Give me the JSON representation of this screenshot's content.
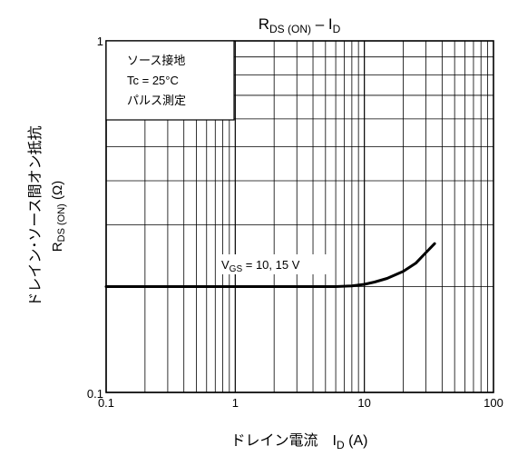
{
  "chart_data": {
    "type": "line",
    "title_main": "R",
    "title_sub": "DS (ON)",
    "title_rest": " – I",
    "title_sub2": "D",
    "x_scale": "log",
    "y_scale": "log",
    "xlim": [
      0.1,
      100
    ],
    "ylim": [
      0.1,
      1
    ],
    "x_ticks": [
      {
        "value": 0.1,
        "label": "0.1"
      },
      {
        "value": 1,
        "label": "1"
      },
      {
        "value": 10,
        "label": "10"
      },
      {
        "value": 100,
        "label": "100"
      }
    ],
    "y_ticks": [
      {
        "value": 1,
        "label": "1"
      },
      {
        "value": 0.1,
        "label": "0.1"
      }
    ],
    "xlabel_main": "ドレイン電流　I",
    "xlabel_sub": "D",
    "xlabel_unit": "  (A)",
    "ylabel_line1": "ドレイン･ソース間オン抵抗",
    "ylabel_line2_main": "R",
    "ylabel_line2_sub": "DS (ON)",
    "ylabel_line2_unit": "  (Ω)",
    "grid": true,
    "conditions": [
      "ソース接地",
      "Tc = 25°C",
      "パルス測定"
    ],
    "series": [
      {
        "label_main": "V",
        "label_sub": "GS",
        "label_rest": " = 10, 15 V",
        "x": [
          0.1,
          0.5,
          1,
          2,
          4,
          6,
          8,
          10,
          12,
          15,
          20,
          25,
          30,
          35
        ],
        "y": [
          0.2,
          0.2,
          0.2,
          0.2,
          0.2,
          0.2,
          0.201,
          0.203,
          0.206,
          0.211,
          0.221,
          0.233,
          0.25,
          0.265
        ]
      }
    ]
  }
}
